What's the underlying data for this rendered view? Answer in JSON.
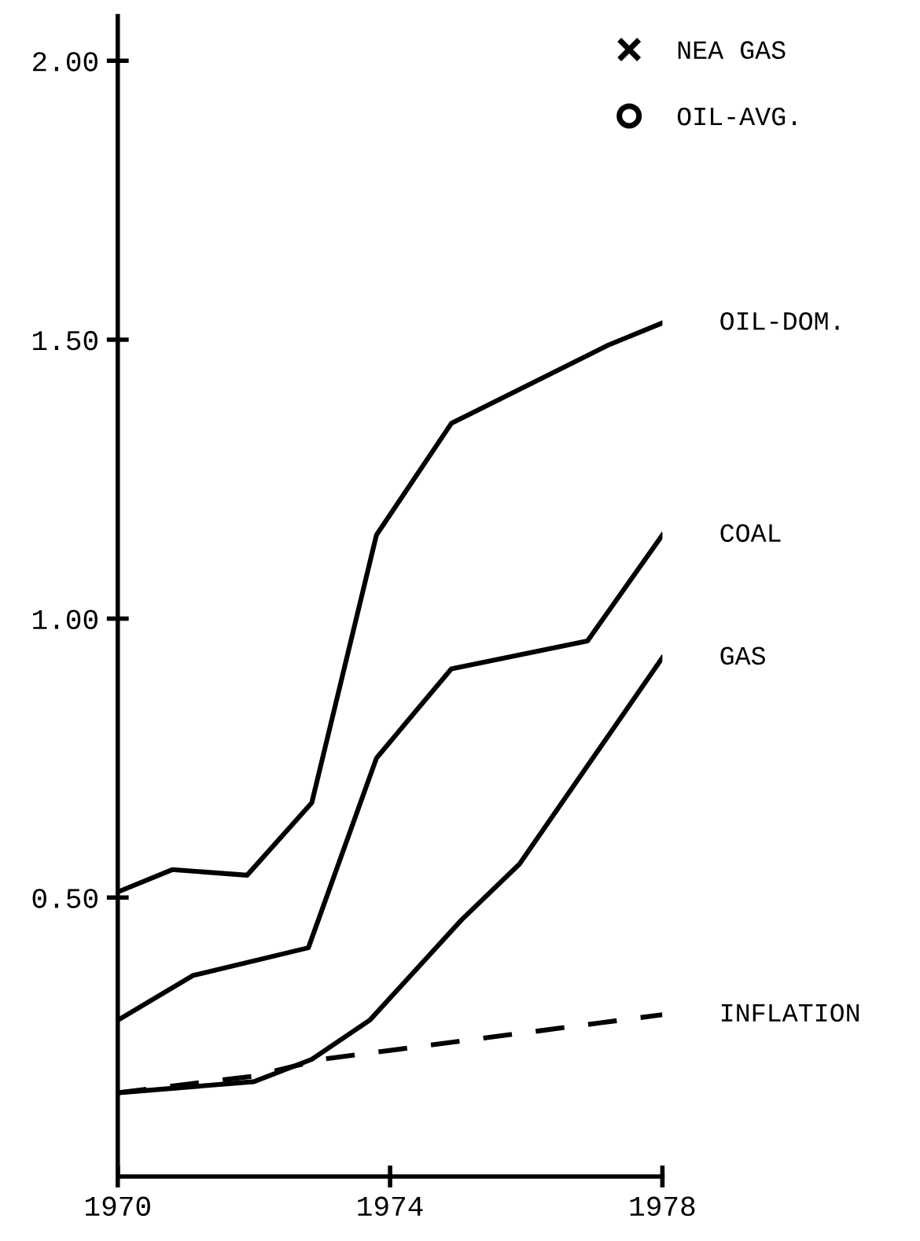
{
  "chart_data": {
    "type": "line",
    "series": [
      {
        "name": "NEA GAS",
        "type": "scatter",
        "marker": "cross",
        "color": "#000000"
      },
      {
        "name": "OIL-AVG.",
        "type": "scatter",
        "marker": "circle",
        "color": "#000000"
      },
      {
        "name": "OIL-DOM.",
        "color": "#000000",
        "line_style": "solid",
        "x": [
          1970,
          1970.8,
          1971.9,
          1972.85,
          1973.8,
          1974.9,
          1977.2,
          1978
        ],
        "values": [
          0.51,
          0.55,
          0.54,
          0.67,
          1.15,
          1.35,
          1.49,
          1.53
        ]
      },
      {
        "name": "COAL",
        "color": "#000000",
        "line_style": "solid",
        "x": [
          1970,
          1971.1,
          1972.8,
          1973.8,
          1974.9,
          1976.9,
          1978
        ],
        "values": [
          0.28,
          0.36,
          0.41,
          0.75,
          0.91,
          0.96,
          1.15
        ]
      },
      {
        "name": "GAS",
        "color": "#000000",
        "line_style": "solid",
        "x": [
          1970,
          1972,
          1972.85,
          1973.7,
          1975.05,
          1975.9,
          1978
        ],
        "values": [
          0.15,
          0.17,
          0.21,
          0.28,
          0.46,
          0.56,
          0.93
        ]
      },
      {
        "name": "INFLATION",
        "color": "#000000",
        "line_style": "dashed",
        "x": [
          1970,
          1972,
          1973,
          1978
        ],
        "values": [
          0.15,
          0.18,
          0.21,
          0.29
        ]
      }
    ],
    "xlim": [
      1970,
      1978
    ],
    "xticks": [
      1970,
      1974,
      1978
    ],
    "ylim": [
      0,
      2.08
    ],
    "yticks": [
      {
        "value": 0.5,
        "label": "0.50"
      },
      {
        "value": 1.0,
        "label": "1.00"
      },
      {
        "value": 1.5,
        "label": "1.50"
      },
      {
        "value": 2.0,
        "label": "2.00"
      }
    ],
    "grid": false,
    "legend": "top right"
  }
}
